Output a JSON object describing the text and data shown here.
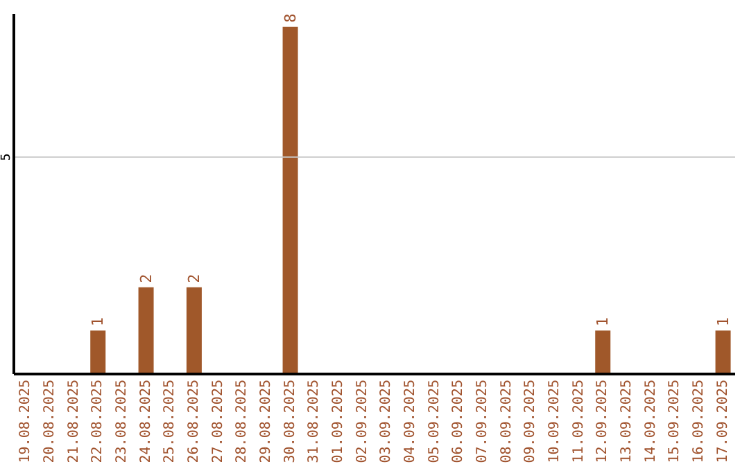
{
  "chart_data": {
    "type": "bar",
    "categories": [
      "19.08.2025",
      "20.08.2025",
      "21.08.2025",
      "22.08.2025",
      "23.08.2025",
      "24.08.2025",
      "25.08.2025",
      "26.08.2025",
      "27.08.2025",
      "28.08.2025",
      "29.08.2025",
      "30.08.2025",
      "31.08.2025",
      "01.09.2025",
      "02.09.2025",
      "03.09.2025",
      "04.09.2025",
      "05.09.2025",
      "06.09.2025",
      "07.09.2025",
      "08.09.2025",
      "09.09.2025",
      "10.09.2025",
      "11.09.2025",
      "12.09.2025",
      "13.09.2025",
      "14.09.2025",
      "15.09.2025",
      "16.09.2025",
      "17.09.2025"
    ],
    "values": [
      0,
      0,
      0,
      1,
      0,
      2,
      0,
      2,
      0,
      0,
      0,
      8,
      0,
      0,
      0,
      0,
      0,
      0,
      0,
      0,
      0,
      0,
      0,
      0,
      1,
      0,
      0,
      0,
      0,
      1
    ],
    "value_labels": [
      null,
      null,
      null,
      "1",
      null,
      "2",
      null,
      "2",
      null,
      null,
      null,
      "8",
      null,
      null,
      null,
      null,
      null,
      null,
      null,
      null,
      null,
      null,
      null,
      null,
      "1",
      null,
      null,
      null,
      null,
      "1"
    ],
    "color": "#a0582a",
    "ylim": [
      0,
      8.3
    ],
    "yticks": [
      5
    ],
    "grid": "y"
  }
}
